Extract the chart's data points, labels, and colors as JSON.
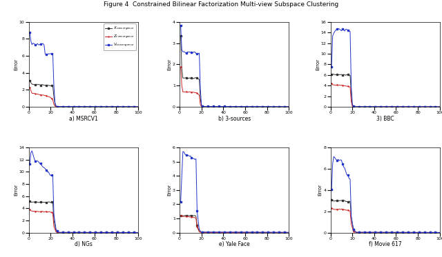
{
  "title": "Figure 4  Constrained Bilinear Factorization Multi-view Subspace Clustering",
  "subplots": [
    {
      "label": "a) MSRCV1",
      "ylim": [
        0,
        10
      ],
      "yticks": [
        0,
        2,
        4,
        6,
        8,
        10
      ],
      "xlim": [
        0,
        100
      ],
      "xticks": [
        0,
        20,
        40,
        60,
        80,
        100
      ],
      "curves": {
        "X": [
          [
            1,
            3.1
          ],
          [
            2,
            2.8
          ],
          [
            3,
            2.65
          ],
          [
            10,
            2.6
          ],
          [
            16,
            2.55
          ],
          [
            20,
            2.5
          ],
          [
            22,
            2.45
          ],
          [
            23,
            1.2
          ],
          [
            24,
            0.3
          ],
          [
            25,
            0.05
          ],
          [
            26,
            0.02
          ],
          [
            100,
            0.01
          ]
        ],
        "Z": [
          [
            1,
            2.3
          ],
          [
            2,
            1.9
          ],
          [
            3,
            1.6
          ],
          [
            10,
            1.45
          ],
          [
            16,
            1.3
          ],
          [
            20,
            1.1
          ],
          [
            22,
            0.8
          ],
          [
            23,
            0.3
          ],
          [
            24,
            0.08
          ],
          [
            25,
            0.02
          ],
          [
            26,
            0.01
          ],
          [
            100,
            0.005
          ]
        ],
        "V": [
          [
            1,
            8.7
          ],
          [
            2,
            7.8
          ],
          [
            3,
            7.4
          ],
          [
            13,
            7.4
          ],
          [
            14,
            7.35
          ],
          [
            15,
            6.2
          ],
          [
            22,
            6.2
          ],
          [
            23,
            2.5
          ],
          [
            24,
            0.5
          ],
          [
            25,
            0.1
          ],
          [
            26,
            0.04
          ],
          [
            100,
            0.02
          ]
        ]
      }
    },
    {
      "label": "b) 3-sources",
      "ylim": [
        0,
        4
      ],
      "yticks": [
        0,
        1,
        2,
        3,
        4
      ],
      "xlim": [
        0,
        100
      ],
      "xticks": [
        0,
        20,
        40,
        60,
        80,
        100
      ],
      "curves": {
        "X": [
          [
            1,
            3.4
          ],
          [
            2,
            1.8
          ],
          [
            3,
            1.35
          ],
          [
            10,
            1.35
          ],
          [
            16,
            1.35
          ],
          [
            18,
            1.3
          ],
          [
            19,
            0.4
          ],
          [
            20,
            0.05
          ],
          [
            21,
            0.01
          ],
          [
            100,
            0.005
          ]
        ],
        "Z": [
          [
            1,
            1.9
          ],
          [
            2,
            1.0
          ],
          [
            3,
            0.7
          ],
          [
            10,
            0.7
          ],
          [
            16,
            0.65
          ],
          [
            18,
            0.55
          ],
          [
            19,
            0.1
          ],
          [
            20,
            0.02
          ],
          [
            21,
            0.005
          ],
          [
            100,
            0.002
          ]
        ],
        "V": [
          [
            1,
            3.8
          ],
          [
            2,
            2.7
          ],
          [
            3,
            2.6
          ],
          [
            5,
            2.55
          ],
          [
            12,
            2.55
          ],
          [
            15,
            2.55
          ],
          [
            18,
            2.5
          ],
          [
            19,
            0.8
          ],
          [
            20,
            0.1
          ],
          [
            21,
            0.02
          ],
          [
            100,
            0.01
          ]
        ]
      }
    },
    {
      "label": "3) BBC",
      "ylim": [
        0,
        16
      ],
      "yticks": [
        0,
        2,
        4,
        6,
        8,
        10,
        12,
        14,
        16
      ],
      "xlim": [
        0,
        100
      ],
      "xticks": [
        0,
        20,
        40,
        60,
        80,
        100
      ],
      "curves": {
        "X": [
          [
            1,
            6.2
          ],
          [
            2,
            6.2
          ],
          [
            5,
            6.1
          ],
          [
            10,
            6.05
          ],
          [
            15,
            6.0
          ],
          [
            18,
            5.95
          ],
          [
            19,
            2.5
          ],
          [
            20,
            0.3
          ],
          [
            21,
            0.05
          ],
          [
            22,
            0.02
          ],
          [
            100,
            0.01
          ]
        ],
        "Z": [
          [
            1,
            4.4
          ],
          [
            2,
            4.2
          ],
          [
            5,
            4.1
          ],
          [
            10,
            4.05
          ],
          [
            15,
            3.9
          ],
          [
            18,
            3.7
          ],
          [
            19,
            1.0
          ],
          [
            20,
            0.1
          ],
          [
            21,
            0.02
          ],
          [
            22,
            0.01
          ],
          [
            100,
            0.005
          ]
        ],
        "V": [
          [
            1,
            7.5
          ],
          [
            2,
            13.5
          ],
          [
            5,
            14.5
          ],
          [
            10,
            14.5
          ],
          [
            15,
            14.4
          ],
          [
            18,
            14.2
          ],
          [
            19,
            4.0
          ],
          [
            20,
            0.5
          ],
          [
            21,
            0.1
          ],
          [
            22,
            0.04
          ],
          [
            100,
            0.02
          ]
        ]
      }
    },
    {
      "label": "d) NGs",
      "ylim": [
        0,
        14
      ],
      "yticks": [
        0,
        2,
        4,
        6,
        8,
        10,
        12,
        14
      ],
      "xlim": [
        0,
        100
      ],
      "xticks": [
        0,
        20,
        40,
        60,
        80,
        100
      ],
      "curves": {
        "X": [
          [
            1,
            5.2
          ],
          [
            2,
            5.1
          ],
          [
            3,
            5.05
          ],
          [
            10,
            5.0
          ],
          [
            20,
            5.0
          ],
          [
            22,
            4.9
          ],
          [
            23,
            2.0
          ],
          [
            25,
            0.3
          ],
          [
            27,
            0.05
          ],
          [
            28,
            0.02
          ],
          [
            100,
            0.01
          ]
        ],
        "Z": [
          [
            1,
            3.8
          ],
          [
            2,
            3.6
          ],
          [
            3,
            3.5
          ],
          [
            10,
            3.45
          ],
          [
            20,
            3.4
          ],
          [
            22,
            3.2
          ],
          [
            23,
            1.0
          ],
          [
            25,
            0.1
          ],
          [
            27,
            0.02
          ],
          [
            28,
            0.01
          ],
          [
            100,
            0.005
          ]
        ],
        "V": [
          [
            1,
            11.5
          ],
          [
            2,
            13.0
          ],
          [
            3,
            13.3
          ],
          [
            5,
            12.0
          ],
          [
            10,
            11.5
          ],
          [
            15,
            10.5
          ],
          [
            20,
            9.5
          ],
          [
            22,
            9.2
          ],
          [
            23,
            3.0
          ],
          [
            25,
            0.5
          ],
          [
            27,
            0.1
          ],
          [
            28,
            0.04
          ],
          [
            100,
            0.02
          ]
        ]
      }
    },
    {
      "label": "e) Yale Face",
      "ylim": [
        0,
        6
      ],
      "yticks": [
        0,
        1,
        2,
        3,
        4,
        5,
        6
      ],
      "xlim": [
        0,
        100
      ],
      "xticks": [
        0,
        20,
        40,
        60,
        80,
        100
      ],
      "curves": {
        "X": [
          [
            1,
            1.2
          ],
          [
            3,
            1.2
          ],
          [
            10,
            1.2
          ],
          [
            14,
            1.2
          ],
          [
            15,
            1.15
          ],
          [
            16,
            0.5
          ],
          [
            18,
            0.08
          ],
          [
            20,
            0.01
          ],
          [
            100,
            0.005
          ]
        ],
        "Z": [
          [
            1,
            1.2
          ],
          [
            3,
            1.15
          ],
          [
            10,
            1.1
          ],
          [
            14,
            1.05
          ],
          [
            15,
            1.0
          ],
          [
            16,
            0.4
          ],
          [
            18,
            0.05
          ],
          [
            20,
            0.01
          ],
          [
            100,
            0.004
          ]
        ],
        "V": [
          [
            1,
            2.2
          ],
          [
            3,
            5.8
          ],
          [
            5,
            5.5
          ],
          [
            8,
            5.4
          ],
          [
            12,
            5.3
          ],
          [
            15,
            5.2
          ],
          [
            16,
            1.5
          ],
          [
            18,
            0.2
          ],
          [
            20,
            0.04
          ],
          [
            100,
            0.02
          ]
        ]
      }
    },
    {
      "label": "f) Movie 617",
      "ylim": [
        0,
        8
      ],
      "yticks": [
        0,
        2,
        4,
        6,
        8
      ],
      "xlim": [
        0,
        100
      ],
      "xticks": [
        0,
        20,
        40,
        60,
        80,
        100
      ],
      "curves": {
        "X": [
          [
            1,
            3.1
          ],
          [
            2,
            3.05
          ],
          [
            3,
            3.0
          ],
          [
            10,
            3.0
          ],
          [
            16,
            2.95
          ],
          [
            18,
            2.9
          ],
          [
            19,
            1.5
          ],
          [
            21,
            0.3
          ],
          [
            23,
            0.05
          ],
          [
            24,
            0.02
          ],
          [
            100,
            0.01
          ]
        ],
        "Z": [
          [
            1,
            2.3
          ],
          [
            2,
            2.25
          ],
          [
            3,
            2.2
          ],
          [
            10,
            2.2
          ],
          [
            16,
            2.1
          ],
          [
            18,
            2.0
          ],
          [
            19,
            0.8
          ],
          [
            21,
            0.1
          ],
          [
            23,
            0.02
          ],
          [
            24,
            0.01
          ],
          [
            100,
            0.005
          ]
        ],
        "V": [
          [
            1,
            4.0
          ],
          [
            2,
            6.5
          ],
          [
            3,
            7.2
          ],
          [
            5,
            6.9
          ],
          [
            10,
            6.8
          ],
          [
            15,
            5.5
          ],
          [
            18,
            5.0
          ],
          [
            19,
            1.5
          ],
          [
            21,
            0.3
          ],
          [
            23,
            0.06
          ],
          [
            24,
            0.03
          ],
          [
            100,
            0.01
          ]
        ]
      }
    }
  ],
  "colors": {
    "X": "#333333",
    "Z": "#cc2222",
    "V": "#2233cc"
  },
  "legend_items": [
    {
      "label": "X_convergence",
      "color": "#333333",
      "marker": "s"
    },
    {
      "label": "Z_convergence",
      "color": "#cc2222",
      "marker": "+"
    },
    {
      "label": "V_convergence",
      "color": "#2233cc",
      "marker": "s"
    }
  ]
}
